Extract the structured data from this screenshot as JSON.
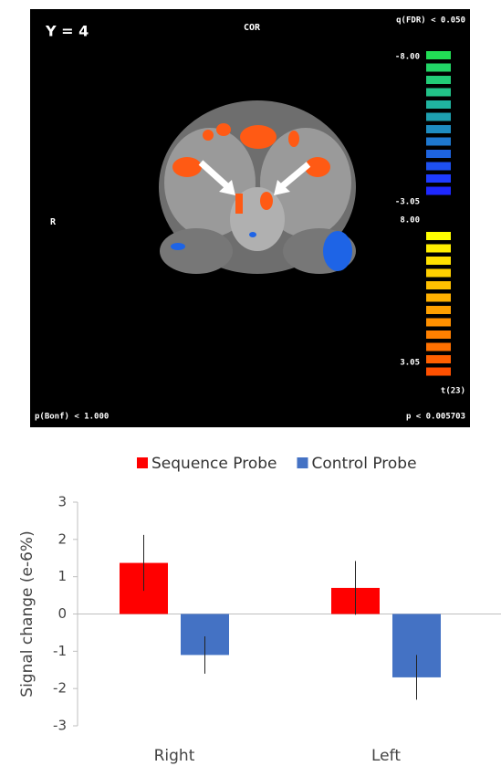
{
  "brain_panel": {
    "slice_label": "Y = 4",
    "view_label": "COR",
    "side_label": "R",
    "fdr_label": "q(FDR) < 0.050",
    "neg_max": "-8.00",
    "neg_min": "-3.05",
    "pos_max": "8.00",
    "pos_min": "3.05",
    "stat_label": "t(23)",
    "bonf_label": "p(Bonf) < 1.000",
    "p_label": "p < 0.005703"
  },
  "chart_data": {
    "type": "bar",
    "categories": [
      "Right",
      "Left"
    ],
    "series": [
      {
        "name": "Sequence Probe",
        "color": "#ff0000",
        "values": [
          1.37,
          0.7
        ],
        "errors": [
          0.75,
          0.72
        ]
      },
      {
        "name": "Control Probe",
        "color": "#4472c4",
        "values": [
          -1.1,
          -1.7
        ],
        "errors": [
          0.5,
          0.6
        ]
      }
    ],
    "y_label": "Signal change (e-6%)",
    "ylim": [
      -3,
      3
    ],
    "yticks": [
      -3,
      -2,
      -1,
      0,
      1,
      2,
      3
    ],
    "legend": "top"
  }
}
